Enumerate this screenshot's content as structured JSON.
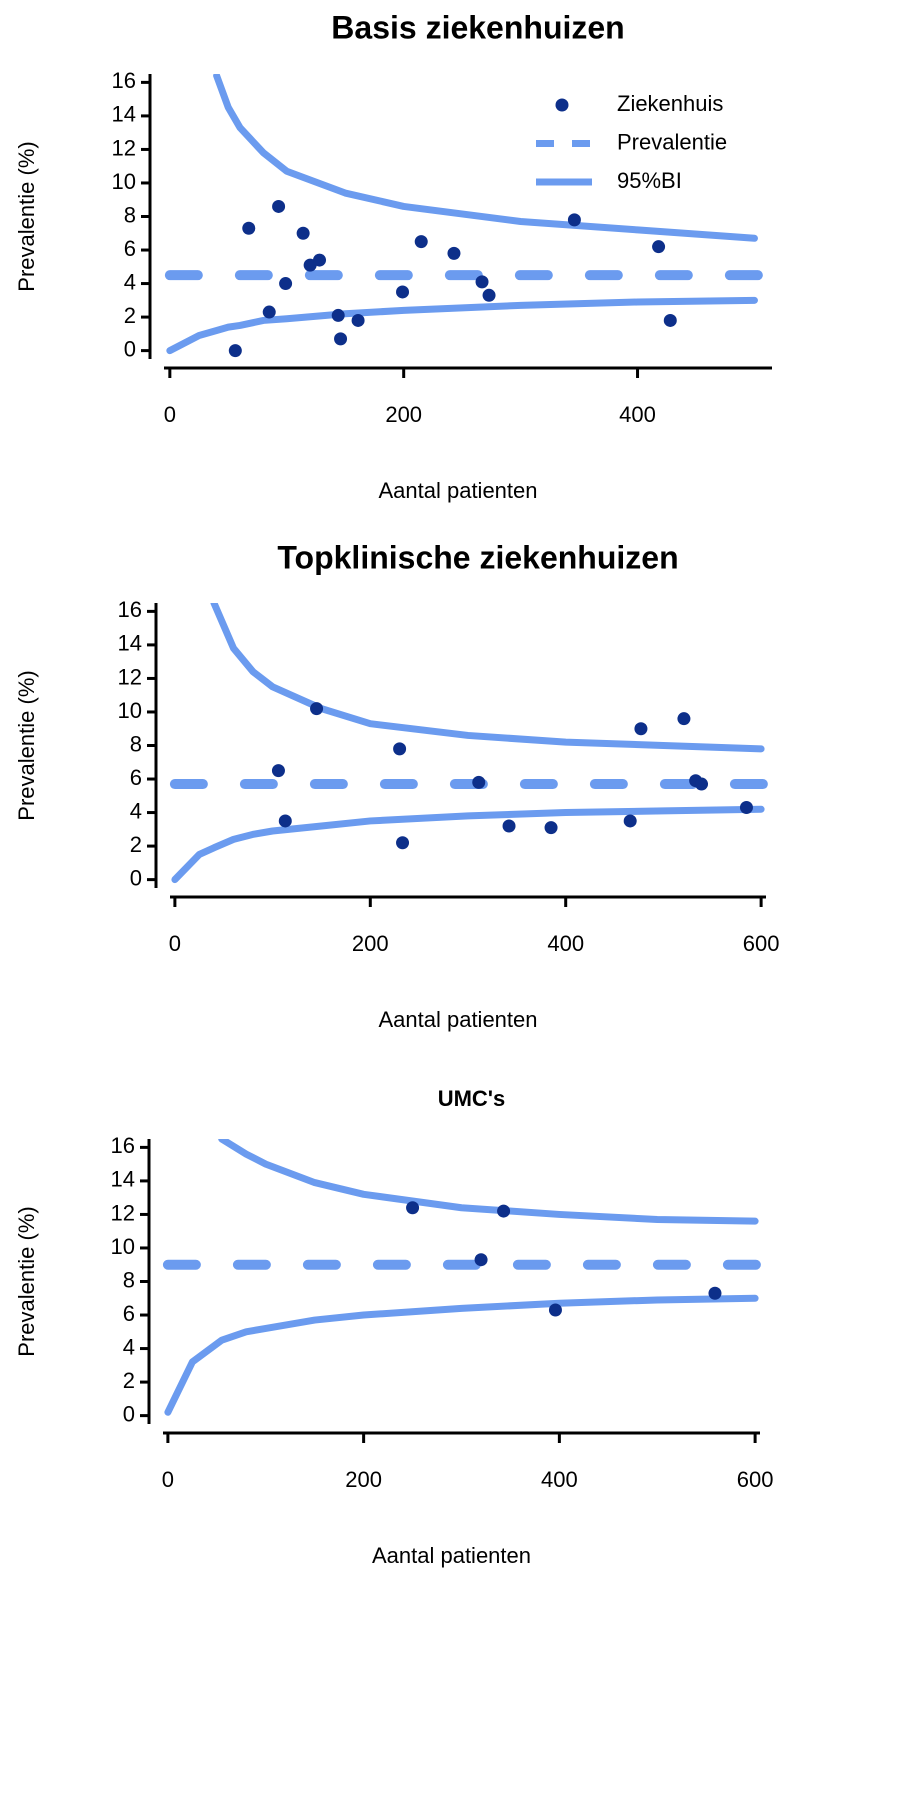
{
  "chart_data": [
    {
      "type": "funnel",
      "title": "Basis ziekenhuizen",
      "x_label": "Aantal patienten",
      "y_label": "Prevalentie (%)",
      "xlim": [
        -5,
        515
      ],
      "xticks": [
        0,
        200,
        400
      ],
      "ylim": [
        -0.5,
        16.5
      ],
      "yticks": [
        0,
        2,
        4,
        6,
        8,
        10,
        12,
        14,
        16
      ],
      "legend": "topright",
      "series": [
        {
          "name": "Ziekenhuis",
          "kind": "points",
          "color": "#0d2f8a",
          "x": [
            67.5,
            93,
            56,
            85,
            99,
            114,
            120,
            128,
            144,
            146,
            161,
            199,
            215,
            243,
            267,
            273,
            346,
            418,
            428
          ],
          "values": [
            7.3,
            8.6,
            0,
            2.3,
            4.0,
            7.0,
            5.1,
            5.4,
            2.1,
            0.7,
            1.8,
            3.5,
            6.5,
            5.8,
            4.1,
            3.3,
            7.8,
            6.2,
            1.8
          ]
        },
        {
          "name": "Prevalentie",
          "kind": "reference",
          "color": "#6b9bef",
          "value": 4.5
        },
        {
          "name": "95%BI",
          "kind": "interval",
          "color": "#6b9bef",
          "x": [
            0,
            25,
            40,
            50,
            60,
            80,
            100,
            150,
            200,
            300,
            400,
            500
          ],
          "upper": [
            null,
            null,
            16.4,
            14.5,
            13.3,
            11.8,
            10.7,
            9.4,
            8.6,
            7.7,
            7.2,
            6.7
          ],
          "lower": [
            0,
            0.9,
            1.2,
            1.4,
            1.5,
            1.8,
            1.9,
            2.2,
            2.4,
            2.7,
            2.9,
            3.0
          ]
        }
      ]
    },
    {
      "type": "funnel",
      "title": "Topklinische ziekenhuizen",
      "x_label": "Aantal patienten",
      "y_label": "Prevalentie (%)",
      "xlim": [
        -5,
        605
      ],
      "xticks": [
        0,
        200,
        400,
        600
      ],
      "ylim": [
        -0.5,
        16.5
      ],
      "yticks": [
        0,
        2,
        4,
        6,
        8,
        10,
        12,
        14,
        16
      ],
      "series": [
        {
          "kind": "points",
          "color": "#0d2f8a",
          "x": [
            106,
            113,
            145,
            230,
            233,
            311,
            342,
            385,
            466,
            477,
            521,
            533,
            539,
            585
          ],
          "values": [
            6.5,
            3.5,
            10.2,
            7.8,
            2.2,
            5.8,
            3.2,
            3.1,
            3.5,
            9.0,
            9.6,
            5.9,
            5.7,
            4.3
          ]
        },
        {
          "kind": "reference",
          "color": "#6b9bef",
          "value": 5.7
        },
        {
          "kind": "interval",
          "color": "#6b9bef",
          "x": [
            0,
            25,
            40,
            60,
            80,
            100,
            150,
            200,
            300,
            400,
            500,
            600
          ],
          "upper": [
            null,
            null,
            16.5,
            13.8,
            12.4,
            11.5,
            10.2,
            9.3,
            8.6,
            8.2,
            8.0,
            7.8
          ],
          "lower": [
            0,
            1.5,
            1.9,
            2.4,
            2.7,
            2.9,
            3.2,
            3.5,
            3.8,
            4.0,
            4.1,
            4.2
          ]
        }
      ]
    },
    {
      "type": "funnel",
      "title": "UMC's",
      "x_label": "Aantal patienten",
      "y_label": "Prevalentie (%)",
      "xlim": [
        -5,
        605
      ],
      "xticks": [
        0,
        200,
        400,
        600
      ],
      "ylim": [
        -0.5,
        16.5
      ],
      "yticks": [
        0,
        2,
        4,
        6,
        8,
        10,
        12,
        14,
        16
      ],
      "series": [
        {
          "kind": "points",
          "color": "#0d2f8a",
          "x": [
            250,
            343,
            320,
            396,
            559
          ],
          "values": [
            12.4,
            12.2,
            9.3,
            6.3,
            7.3
          ]
        },
        {
          "kind": "reference",
          "color": "#6b9bef",
          "value": 9.0
        },
        {
          "kind": "interval",
          "color": "#6b9bef",
          "x": [
            0,
            25,
            55,
            80,
            100,
            150,
            200,
            300,
            400,
            500,
            600
          ],
          "upper": [
            null,
            null,
            16.5,
            15.6,
            15.0,
            13.9,
            13.2,
            12.4,
            12.0,
            11.7,
            11.6
          ],
          "lower": [
            0.2,
            3.2,
            4.5,
            5.0,
            5.2,
            5.7,
            6.0,
            6.4,
            6.7,
            6.9,
            7.0
          ]
        }
      ]
    }
  ]
}
